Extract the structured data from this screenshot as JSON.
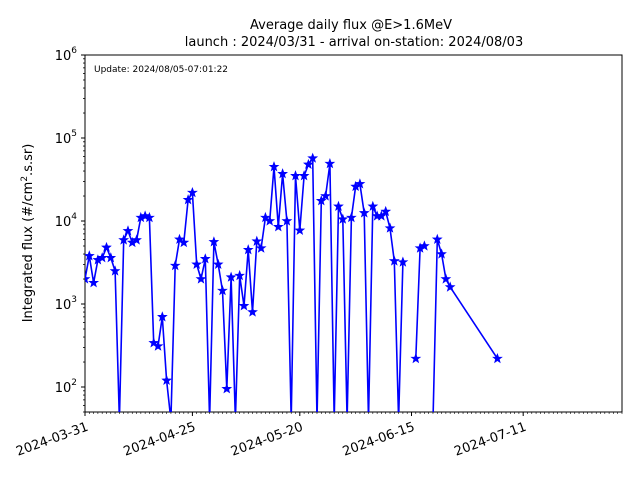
{
  "chart_data": {
    "type": "line",
    "title_line1": "Average daily flux @E>1.6MeV",
    "title_line2": "launch : 2024/03/31 - arrival on-station: 2024/08/03",
    "annotation": "Update: 2024/08/05-07:01:22",
    "xlabel": "",
    "ylabel": "Integrated flux (#/cm².s.sr)",
    "yscale": "log",
    "ylim": [
      50,
      1000000
    ],
    "xlim": [
      "2024-03-31",
      "2024-08-03"
    ],
    "y_ticks": [
      {
        "label": "10²",
        "base": "10",
        "exp": "2",
        "value": 100
      },
      {
        "label": "10³",
        "base": "10",
        "exp": "3",
        "value": 1000
      },
      {
        "label": "10⁴",
        "base": "10",
        "exp": "4",
        "value": 10000
      },
      {
        "label": "10⁵",
        "base": "10",
        "exp": "5",
        "value": 100000
      },
      {
        "label": "10⁶",
        "base": "10",
        "exp": "6",
        "value": 1000000
      }
    ],
    "x_ticks": [
      "2024-03-31",
      "2024-04-25",
      "2024-05-20",
      "2024-06-15",
      "2024-07-11"
    ],
    "grid": false,
    "series": [
      {
        "name": "",
        "color": "#0000ff",
        "marker": "star",
        "points": [
          [
            "2024-03-31",
            2000
          ],
          [
            "2024-04-01",
            3800
          ],
          [
            "2024-04-02",
            1800
          ],
          [
            "2024-04-03",
            3400
          ],
          [
            "2024-04-04",
            3600
          ],
          [
            "2024-04-05",
            4800
          ],
          [
            "2024-04-06",
            3600
          ],
          [
            "2024-04-07",
            2500
          ],
          [
            "2024-04-08",
            40
          ],
          [
            "2024-04-09",
            5900
          ],
          [
            "2024-04-10",
            7600
          ],
          [
            "2024-04-11",
            5500
          ],
          [
            "2024-04-12",
            5900
          ],
          [
            "2024-04-13",
            11000
          ],
          [
            "2024-04-14",
            11500
          ],
          [
            "2024-04-15",
            11000
          ],
          [
            "2024-04-16",
            340
          ],
          [
            "2024-04-17",
            310
          ],
          [
            "2024-04-18",
            700
          ],
          [
            "2024-04-19",
            120
          ],
          [
            "2024-04-20",
            40
          ],
          [
            "2024-04-21",
            2900
          ],
          [
            "2024-04-22",
            6000
          ],
          [
            "2024-04-23",
            5500
          ],
          [
            "2024-04-24",
            18000
          ],
          [
            "2024-04-25",
            22000
          ],
          [
            "2024-04-26",
            3000
          ],
          [
            "2024-04-27",
            2000
          ],
          [
            "2024-04-28",
            3500
          ],
          [
            "2024-04-29",
            40
          ],
          [
            "2024-04-30",
            5600
          ],
          [
            "2024-05-01",
            3000
          ],
          [
            "2024-05-02",
            1450
          ],
          [
            "2024-05-03",
            95
          ],
          [
            "2024-05-04",
            2100
          ],
          [
            "2024-05-05",
            40
          ],
          [
            "2024-05-06",
            2200
          ],
          [
            "2024-05-07",
            950
          ],
          [
            "2024-05-08",
            4500
          ],
          [
            "2024-05-09",
            800
          ],
          [
            "2024-05-10",
            5700
          ],
          [
            "2024-05-11",
            4700
          ],
          [
            "2024-05-12",
            11000
          ],
          [
            "2024-05-13",
            10000
          ],
          [
            "2024-05-14",
            45000
          ],
          [
            "2024-05-15",
            8500
          ],
          [
            "2024-05-16",
            37000
          ],
          [
            "2024-05-17",
            10000
          ],
          [
            "2024-05-18",
            40
          ],
          [
            "2024-05-19",
            35000
          ],
          [
            "2024-05-20",
            7700
          ],
          [
            "2024-05-21",
            35000
          ],
          [
            "2024-05-22",
            48000
          ],
          [
            "2024-05-23",
            57000
          ],
          [
            "2024-05-24",
            40
          ],
          [
            "2024-05-25",
            17500
          ],
          [
            "2024-05-26",
            20000
          ],
          [
            "2024-05-27",
            49000
          ],
          [
            "2024-05-28",
            40
          ],
          [
            "2024-05-29",
            15000
          ],
          [
            "2024-05-30",
            10500
          ],
          [
            "2024-05-31",
            40
          ],
          [
            "2024-06-01",
            11000
          ],
          [
            "2024-06-02",
            26000
          ],
          [
            "2024-06-03",
            28000
          ],
          [
            "2024-06-04",
            12500
          ],
          [
            "2024-06-05",
            40
          ],
          [
            "2024-06-06",
            15000
          ],
          [
            "2024-06-07",
            11500
          ],
          [
            "2024-06-08",
            11500
          ],
          [
            "2024-06-09",
            13000
          ],
          [
            "2024-06-10",
            8200
          ],
          [
            "2024-06-11",
            3300
          ],
          [
            "2024-06-12",
            40
          ],
          [
            "2024-06-13",
            3200
          ],
          [
            "2024-06-14",
            null
          ],
          [
            "2024-06-15",
            null
          ],
          [
            "2024-06-16",
            220
          ],
          [
            "2024-06-17",
            4700
          ],
          [
            "2024-06-18",
            5000
          ],
          [
            "2024-06-19",
            null
          ],
          [
            "2024-06-20",
            40
          ],
          [
            "2024-06-21",
            6000
          ],
          [
            "2024-06-22",
            4000
          ],
          [
            "2024-06-23",
            2000
          ],
          [
            "2024-06-24",
            1600
          ],
          [
            "2024-07-05",
            220
          ]
        ]
      }
    ]
  }
}
